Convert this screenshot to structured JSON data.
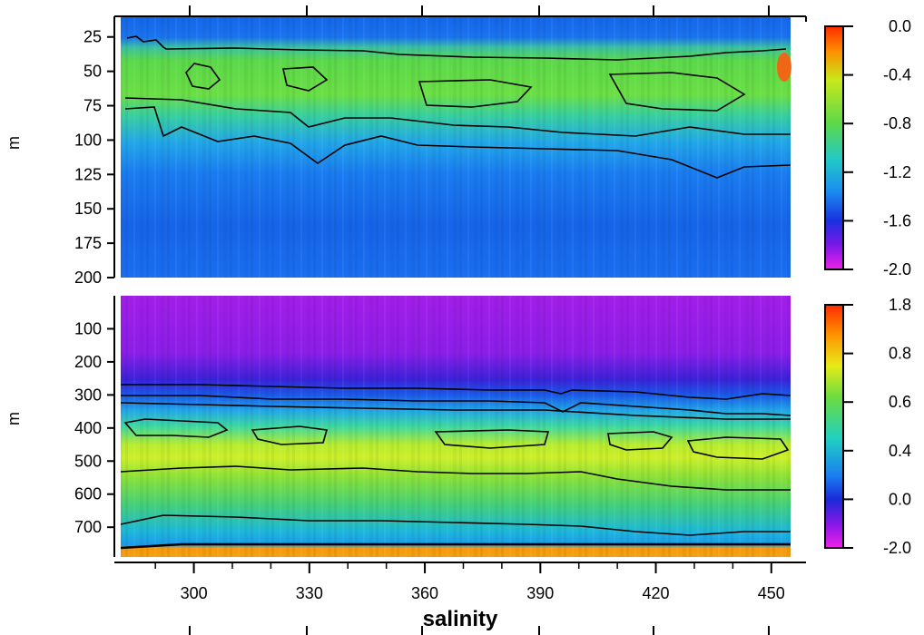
{
  "chart_data": [
    {
      "type": "heatmap",
      "panel": "top",
      "ylabel": "m",
      "ylim": [
        200,
        10
      ],
      "y_ticks": [
        25,
        50,
        75,
        100,
        125,
        150,
        175,
        200
      ],
      "xlim": [
        281,
        455
      ],
      "colorbar": {
        "range": [
          -2.0,
          0.0
        ],
        "ticks": [
          0.0,
          -0.4,
          -0.8,
          -1.2,
          -1.6,
          -2.0
        ],
        "labels": [
          "0.0",
          "-0.4",
          "-0.8",
          "-1.2",
          "-1.6",
          "-2.0"
        ]
      },
      "approx_profile": [
        {
          "depth": 10,
          "value": -1.55
        },
        {
          "depth": 25,
          "value": -1.5
        },
        {
          "depth": 35,
          "value": -1.2
        },
        {
          "depth": 50,
          "value": -0.75
        },
        {
          "depth": 75,
          "value": -0.85
        },
        {
          "depth": 100,
          "value": -1.2
        },
        {
          "depth": 125,
          "value": -1.35
        },
        {
          "depth": 150,
          "value": -1.45
        },
        {
          "depth": 200,
          "value": -1.5
        }
      ],
      "contour_levels": [
        -1.2,
        -0.8
      ]
    },
    {
      "type": "heatmap",
      "panel": "bottom",
      "ylabel": "m",
      "ylim": [
        790,
        0
      ],
      "y_ticks": [
        100,
        200,
        300,
        400,
        500,
        600,
        700
      ],
      "xlim": [
        281,
        455
      ],
      "colorbar": {
        "range": [
          -2.0,
          1.8
        ],
        "ticks": [
          1.8,
          0.8,
          0.6,
          0.4,
          0.0,
          -2.0
        ],
        "labels": [
          "1.8",
          "0.8",
          "0.6",
          "0.4",
          "0.0",
          "-2.0"
        ]
      },
      "approx_profile": [
        {
          "depth": 0,
          "value": -1.8
        },
        {
          "depth": 200,
          "value": -1.7
        },
        {
          "depth": 280,
          "value": -0.2
        },
        {
          "depth": 320,
          "value": 0.1
        },
        {
          "depth": 400,
          "value": 0.55
        },
        {
          "depth": 450,
          "value": 0.65
        },
        {
          "depth": 550,
          "value": 0.55
        },
        {
          "depth": 650,
          "value": 0.4
        },
        {
          "depth": 750,
          "value": 0.05
        },
        {
          "depth": 770,
          "value": 1.2
        }
      ],
      "contour_levels": [
        0.0,
        0.2,
        0.4,
        0.5,
        0.6
      ]
    }
  ],
  "x_axis": {
    "label": "salinity",
    "ticks": [
      300,
      330,
      360,
      390,
      420,
      450
    ]
  }
}
